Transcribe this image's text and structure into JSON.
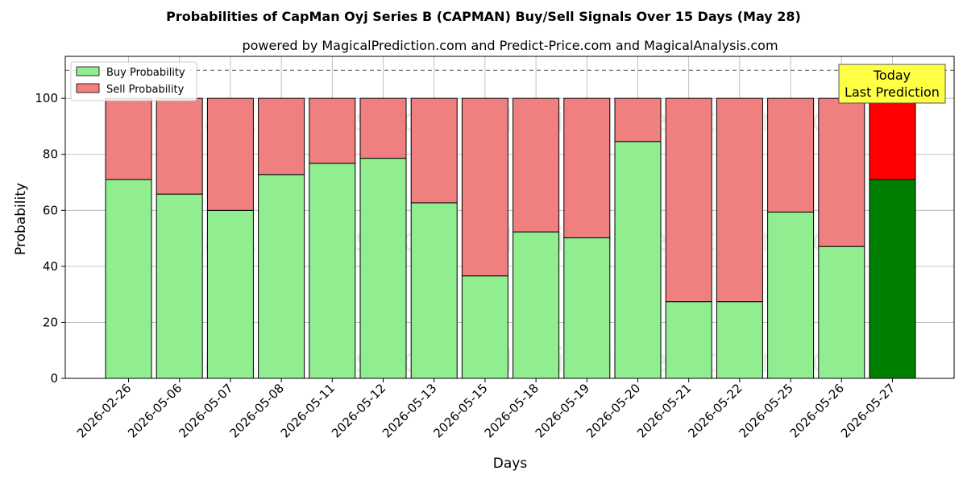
{
  "chart_data": {
    "type": "bar",
    "title": "Probabilities of CapMan Oyj Series B (CAPMAN) Buy/Sell Signals Over 15 Days (May 28)",
    "subtitle": "powered by MagicalPrediction.com and Predict-Price.com and MagicalAnalysis.com",
    "xlabel": "Days",
    "ylabel": "Probability",
    "ylim": [
      0,
      115
    ],
    "yticks": [
      0,
      20,
      40,
      60,
      80,
      100
    ],
    "reference_line": 110,
    "grid": true,
    "legend_position": "top-left",
    "categories": [
      "2026-02-26",
      "2026-05-06",
      "2026-05-07",
      "2026-05-08",
      "2026-05-11",
      "2026-05-12",
      "2026-05-13",
      "2026-05-15",
      "2026-05-18",
      "2026-05-19",
      "2026-05-20",
      "2026-05-21",
      "2026-05-22",
      "2026-05-25",
      "2026-05-26",
      "2026-05-27"
    ],
    "series": [
      {
        "name": "Buy Probability",
        "color": "#90ee90",
        "highlight_color": "#008000",
        "values": [
          71,
          65.8,
          60,
          72.8,
          76.8,
          78.6,
          62.7,
          36.6,
          52.3,
          50.2,
          84.6,
          27.4,
          27.4,
          59.4,
          47.1,
          71
        ]
      },
      {
        "name": "Sell Probability",
        "color": "#f08080",
        "highlight_color": "#ff0000",
        "values": [
          29,
          34.2,
          40,
          27.2,
          23.2,
          21.4,
          37.3,
          63.4,
          47.7,
          49.8,
          15.4,
          72.6,
          72.6,
          40.6,
          52.9,
          29
        ]
      }
    ],
    "highlight_index": 15,
    "annotation": {
      "line1": "Today",
      "line2": "Last Prediction",
      "color": "#ffff44"
    },
    "watermarks": [
      "MagicalAnalysis.com",
      "MagicalPrediction.com"
    ]
  }
}
